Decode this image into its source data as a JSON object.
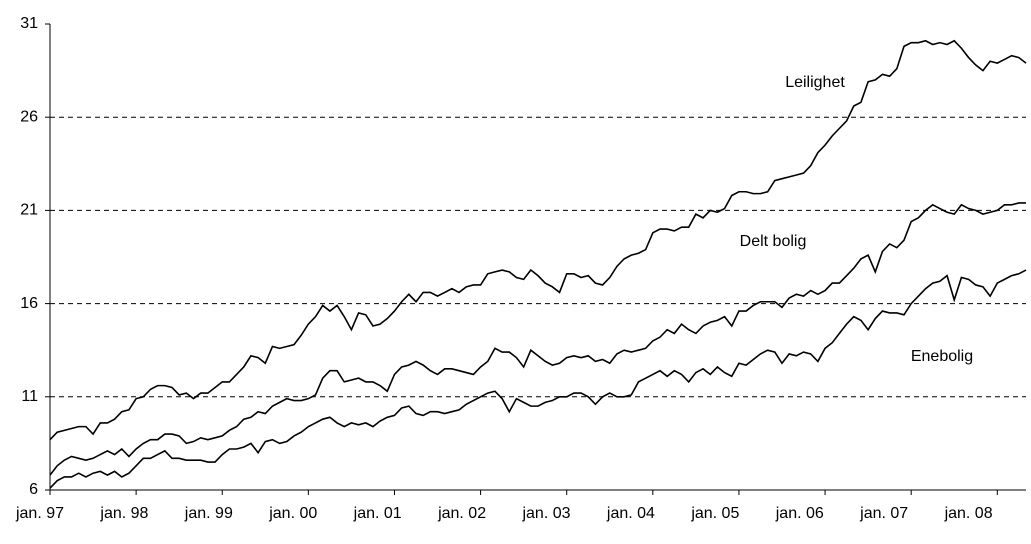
{
  "chart_data": {
    "type": "line",
    "categories": [
      "jan. 97",
      null,
      null,
      null,
      null,
      null,
      null,
      null,
      null,
      null,
      null,
      null,
      "jan. 98",
      null,
      null,
      null,
      null,
      null,
      null,
      null,
      null,
      null,
      null,
      null,
      "jan. 99",
      null,
      null,
      null,
      null,
      null,
      null,
      null,
      null,
      null,
      null,
      null,
      "jan. 00",
      null,
      null,
      null,
      null,
      null,
      null,
      null,
      null,
      null,
      null,
      null,
      "jan. 01",
      null,
      null,
      null,
      null,
      null,
      null,
      null,
      null,
      null,
      null,
      null,
      "jan. 02",
      null,
      null,
      null,
      null,
      null,
      null,
      null,
      null,
      null,
      null,
      null,
      "jan. 03",
      null,
      null,
      null,
      null,
      null,
      null,
      null,
      null,
      null,
      null,
      null,
      "jan. 04",
      null,
      null,
      null,
      null,
      null,
      null,
      null,
      null,
      null,
      null,
      null,
      "jan. 05",
      null,
      null,
      null,
      null,
      null,
      null,
      null,
      null,
      null,
      null,
      null,
      "jan. 06",
      null,
      null,
      null,
      null,
      null,
      null,
      null,
      null,
      null,
      null,
      null,
      "jan. 07",
      null,
      null,
      null,
      null,
      null,
      null,
      null,
      null,
      null,
      null,
      null,
      "jan. 08",
      null,
      null,
      null,
      null
    ],
    "series": [
      {
        "name": "Leilighet",
        "color": "#000000",
        "values": [
          8.7,
          9.1,
          9.2,
          9.3,
          9.4,
          9.4,
          9.0,
          9.6,
          9.6,
          9.8,
          10.2,
          10.3,
          10.9,
          11.0,
          11.4,
          11.6,
          11.6,
          11.5,
          11.1,
          11.2,
          10.9,
          11.2,
          11.2,
          11.5,
          11.8,
          11.8,
          12.2,
          12.6,
          13.2,
          13.1,
          12.8,
          13.7,
          13.6,
          13.7,
          13.8,
          14.3,
          14.9,
          15.3,
          15.9,
          15.6,
          15.9,
          15.3,
          14.6,
          15.5,
          15.4,
          14.8,
          14.9,
          15.2,
          15.6,
          16.1,
          16.5,
          16.1,
          16.6,
          16.6,
          16.4,
          16.6,
          16.8,
          16.6,
          16.9,
          17.0,
          17.0,
          17.6,
          17.7,
          17.8,
          17.7,
          17.4,
          17.3,
          17.8,
          17.5,
          17.1,
          16.9,
          16.6,
          17.6,
          17.6,
          17.4,
          17.5,
          17.1,
          17.0,
          17.4,
          18.0,
          18.4,
          18.6,
          18.7,
          18.9,
          19.8,
          20.0,
          20.0,
          19.9,
          20.1,
          20.1,
          20.8,
          20.6,
          21.0,
          20.9,
          21.1,
          21.8,
          22.0,
          22.0,
          21.9,
          21.9,
          22.0,
          22.6,
          22.7,
          22.8,
          22.9,
          23.0,
          23.4,
          24.1,
          24.5,
          25.0,
          25.4,
          25.8,
          26.6,
          26.8,
          27.9,
          28.0,
          28.3,
          28.2,
          28.6,
          29.8,
          30.0,
          30.0,
          30.1,
          29.9,
          30.0,
          29.9,
          30.1,
          29.7,
          29.2,
          28.8,
          28.5,
          29.0,
          28.9,
          29.1,
          29.3,
          29.2,
          28.9
        ]
      },
      {
        "name": "Delt bolig",
        "color": "#000000",
        "values": [
          6.8,
          7.3,
          7.6,
          7.8,
          7.7,
          7.6,
          7.7,
          7.9,
          8.1,
          7.9,
          8.2,
          7.8,
          8.2,
          8.5,
          8.7,
          8.7,
          9.0,
          9.0,
          8.9,
          8.5,
          8.6,
          8.8,
          8.7,
          8.8,
          8.9,
          9.2,
          9.4,
          9.8,
          9.9,
          10.2,
          10.1,
          10.5,
          10.7,
          10.9,
          10.8,
          10.8,
          10.9,
          11.1,
          12.0,
          12.4,
          12.4,
          11.8,
          11.9,
          12.0,
          11.8,
          11.8,
          11.6,
          11.3,
          12.2,
          12.6,
          12.7,
          12.9,
          12.7,
          12.4,
          12.2,
          12.5,
          12.5,
          12.4,
          12.3,
          12.2,
          12.6,
          12.9,
          13.6,
          13.4,
          13.4,
          13.1,
          12.6,
          13.5,
          13.2,
          12.9,
          12.7,
          12.8,
          13.1,
          13.2,
          13.1,
          13.2,
          12.9,
          13.0,
          12.8,
          13.3,
          13.5,
          13.4,
          13.5,
          13.6,
          14.0,
          14.2,
          14.6,
          14.4,
          14.9,
          14.6,
          14.4,
          14.8,
          15.0,
          15.1,
          15.3,
          14.8,
          15.6,
          15.6,
          15.9,
          16.1,
          16.1,
          16.1,
          15.8,
          16.3,
          16.5,
          16.4,
          16.7,
          16.5,
          16.7,
          17.1,
          17.1,
          17.5,
          17.9,
          18.4,
          18.6,
          17.7,
          18.8,
          19.2,
          19.0,
          19.4,
          20.4,
          20.6,
          21.0,
          21.3,
          21.1,
          20.9,
          20.8,
          21.3,
          21.1,
          21.0,
          20.8,
          20.9,
          21.0,
          21.3,
          21.3,
          21.4,
          21.4
        ]
      },
      {
        "name": "Enebolig",
        "color": "#000000",
        "values": [
          6.1,
          6.5,
          6.7,
          6.7,
          6.9,
          6.7,
          6.9,
          7.0,
          6.8,
          7.0,
          6.7,
          6.9,
          7.3,
          7.7,
          7.7,
          7.9,
          8.1,
          7.7,
          7.7,
          7.6,
          7.6,
          7.6,
          7.5,
          7.5,
          7.9,
          8.2,
          8.2,
          8.3,
          8.5,
          8.0,
          8.6,
          8.7,
          8.5,
          8.6,
          8.9,
          9.1,
          9.4,
          9.6,
          9.8,
          9.9,
          9.6,
          9.4,
          9.6,
          9.5,
          9.6,
          9.4,
          9.7,
          9.9,
          10.0,
          10.4,
          10.5,
          10.1,
          10.0,
          10.2,
          10.2,
          10.1,
          10.2,
          10.3,
          10.6,
          10.8,
          11.0,
          11.2,
          11.3,
          10.9,
          10.2,
          10.9,
          10.7,
          10.5,
          10.5,
          10.7,
          10.8,
          11.0,
          11.0,
          11.2,
          11.2,
          11.0,
          10.6,
          11.0,
          11.2,
          11.0,
          11.0,
          11.1,
          11.8,
          12.0,
          12.2,
          12.4,
          12.1,
          12.4,
          12.2,
          11.8,
          12.3,
          12.5,
          12.2,
          12.6,
          12.3,
          12.1,
          12.8,
          12.7,
          13.0,
          13.3,
          13.5,
          13.4,
          12.8,
          13.3,
          13.2,
          13.4,
          13.3,
          12.9,
          13.6,
          13.9,
          14.4,
          14.9,
          15.3,
          15.1,
          14.6,
          15.2,
          15.6,
          15.5,
          15.5,
          15.4,
          16.0,
          16.4,
          16.8,
          17.1,
          17.2,
          17.5,
          16.2,
          17.4,
          17.3,
          17.0,
          16.9,
          16.4,
          17.1,
          17.3,
          17.5,
          17.6,
          17.8
        ]
      }
    ],
    "ylim": [
      6,
      31
    ],
    "yticks": [
      6,
      11,
      16,
      21,
      26,
      31
    ],
    "grid": true
  }
}
